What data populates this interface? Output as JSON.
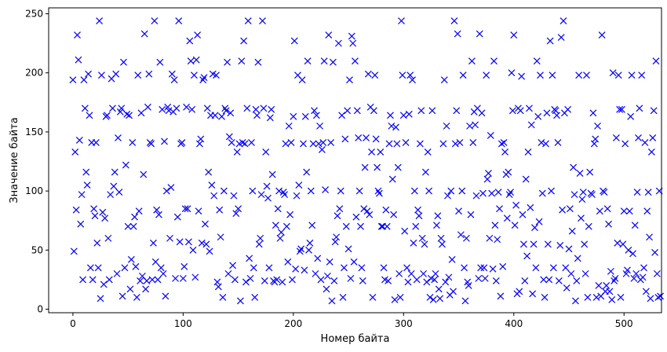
{
  "chart_data": {
    "type": "scatter",
    "marker": "x",
    "color": "#0000ff",
    "xlabel": "Номер байта",
    "ylabel": "Значение байта",
    "xlim": [
      -22,
      534
    ],
    "ylim": [
      -3,
      255
    ],
    "xticks": [
      0,
      100,
      200,
      300,
      400,
      500
    ],
    "yticks": [
      0,
      50,
      100,
      150,
      200,
      250
    ],
    "grid": false,
    "legend": "none",
    "y": [
      194,
      49,
      133,
      84,
      232,
      211,
      143,
      72,
      97,
      25,
      194,
      170,
      116,
      105,
      199,
      164,
      35,
      141,
      25,
      85,
      79,
      141,
      56,
      35,
      244,
      9,
      198,
      82,
      21,
      77,
      163,
      164,
      60,
      25,
      97,
      195,
      170,
      104,
      116,
      199,
      30,
      145,
      99,
      167,
      170,
      11,
      209,
      35,
      122,
      165,
      70,
      164,
      17,
      42,
      141,
      70,
      78,
      36,
      10,
      198,
      83,
      24,
      166,
      28,
      114,
      233,
      17,
      24,
      171,
      199,
      141,
      140,
      25,
      56,
      244,
      40,
      84,
      25,
      80,
      209,
      35,
      169,
      30,
      142,
      11,
      100,
      171,
      168,
      60,
      103,
      199,
      167,
      194,
      26,
      170,
      78,
      244,
      57,
      140,
      141,
      26,
      36,
      85,
      171,
      85,
      57,
      227,
      210,
      169,
      50,
      198,
      27,
      211,
      232,
      83,
      140,
      144,
      56,
      194,
      196,
      72,
      55,
      170,
      116,
      49,
      164,
      105,
      199,
      96,
      164,
      198,
      23,
      19,
      84,
      61,
      163,
      10,
      100,
      170,
      168,
      209,
      30,
      146,
      166,
      141,
      37,
      96,
      25,
      81,
      133,
      85,
      140,
      7,
      210,
      141,
      227,
      140,
      23,
      170,
      244,
      43,
      26,
      141,
      100,
      35,
      10,
      169,
      164,
      209,
      55,
      60,
      97,
      244,
      170,
      24,
      133,
      104,
      94,
      35,
      162,
      169,
      114,
      24,
      23,
      71,
      25,
      85,
      100,
      60,
      65,
      23,
      99,
      97,
      140,
      70,
      40,
      155,
      80,
      141,
      25,
      163,
      227,
      34,
      96,
      198,
      105,
      49,
      51,
      194,
      140,
      33,
      163,
      116,
      210,
      50,
      56,
      100,
      71,
      140,
      168,
      30,
      164,
      43,
      140,
      155,
      25,
      135,
      141,
      210,
      101,
      17,
      28,
      232,
      40,
      141,
      7,
      209,
      24,
      57,
      61,
      79,
      225,
      85,
      100,
      164,
      10,
      35,
      144,
      70,
      168,
      51,
      194,
      26,
      231,
      225,
      40,
      210,
      78,
      168,
      145,
      100,
      70,
      35,
      24,
      85,
      120,
      145,
      83,
      199,
      80,
      171,
      133,
      10,
      168,
      198,
      144,
      120,
      100,
      98,
      133,
      70,
      70,
      35,
      25,
      84,
      70,
      24,
      140,
      164,
      155,
      110,
      80,
      8,
      154,
      140,
      120,
      30,
      10,
      244,
      198,
      164,
      66,
      141,
      35,
      23,
      165,
      198,
      30,
      194,
      56,
      100,
      70,
      25,
      84,
      79,
      140,
      168,
      60,
      30,
      55,
      116,
      23,
      133,
      100,
      10,
      26,
      168,
      8,
      25,
      30,
      71,
      79,
      17,
      9,
      60,
      55,
      140,
      194,
      23,
      155,
      96,
      27,
      12,
      100,
      42,
      15,
      244,
      140,
      168,
      233,
      83,
      141,
      63,
      100,
      198,
      35,
      7,
      60,
      23,
      20,
      155,
      80,
      210,
      141,
      167,
      156,
      96,
      170,
      26,
      233,
      35,
      166,
      98,
      35,
      26,
      198,
      110,
      115,
      60,
      147,
      98,
      34,
      210,
      71,
      24,
      59,
      99,
      85,
      11,
      140,
      36,
      141,
      133,
      114,
      77,
      116,
      97,
      99,
      200,
      168,
      232,
      71,
      88,
      13,
      170,
      15,
      168,
      197,
      80,
      55,
      24,
      110,
      45,
      133,
      170,
      86,
      156,
      13,
      55,
      69,
      35,
      210,
      163,
      74,
      198,
      141,
      98,
      25,
      10,
      140,
      166,
      55,
      25,
      227,
      100,
      198,
      35,
      169,
      168,
      164,
      141,
      24,
      54,
      230,
      84,
      244,
      166,
      35,
      18,
      169,
      51,
      85,
      30,
      66,
      120,
      97,
      7,
      24,
      43,
      198,
      115,
      77,
      93,
      99,
      55,
      30,
      198,
      10,
      70,
      116,
      98,
      97,
      166,
      140,
      144,
      10,
      155,
      20,
      83,
      11,
      232,
      100,
      99,
      15,
      20,
      85,
      72,
      15,
      32,
      8,
      200,
      24,
      26,
      145,
      56,
      198,
      169,
      10,
      169,
      55,
      83,
      140,
      30,
      33,
      50,
      83,
      163,
      198,
      47,
      26,
      71,
      30,
      99,
      145,
      170,
      25,
      198,
      27,
      35,
      141,
      15,
      83,
      99,
      61,
      9,
      133,
      145,
      168,
      48,
      210,
      30,
      10,
      100,
      11
    ]
  }
}
